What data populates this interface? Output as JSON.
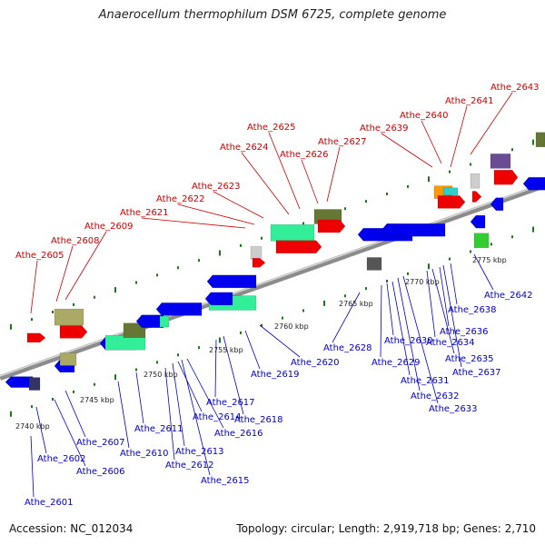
{
  "title": "Anaerocellum thermophilum DSM 6725, complete genome",
  "accession_text": "Accession: NC_012034",
  "summary_text": "Topology: circular; Length: 2,919,718 bp; Genes: 2,710",
  "colors": {
    "top_label": "#cc0000",
    "bottom_label": "#0000cc",
    "backbone": "#999999",
    "tick": "#1a7a1a"
  },
  "kbp_labels": [
    "2740 kbp",
    "2745 kbp",
    "2750 kbp",
    "2755 kbp",
    "2760 kbp",
    "2765 kbp",
    "2770 kbp",
    "2775 kbp"
  ],
  "top_labels": [
    "Athe_2605",
    "Athe_2608",
    "Athe_2609",
    "Athe_2621",
    "Athe_2622",
    "Athe_2623",
    "Athe_2624",
    "Athe_2625",
    "Athe_2626",
    "Athe_2627",
    "Athe_2639",
    "Athe_2640",
    "Athe_2641",
    "Athe_2643"
  ],
  "bottom_labels": [
    "Athe_2601",
    "Athe_2602",
    "Athe_2606",
    "Athe_2607",
    "Athe_2610",
    "Athe_2611",
    "Athe_2612",
    "Athe_2613",
    "Athe_2614",
    "Athe_2615",
    "Athe_2616",
    "Athe_2617",
    "Athe_2618",
    "Athe_2619",
    "Athe_2620",
    "Athe_2628",
    "Athe_2629",
    "Athe_2630",
    "Athe_2631",
    "Athe_2632",
    "Athe_2633",
    "Athe_2634",
    "Athe_2635",
    "Athe_2636",
    "Athe_2637",
    "Athe_2638",
    "Athe_2642"
  ]
}
